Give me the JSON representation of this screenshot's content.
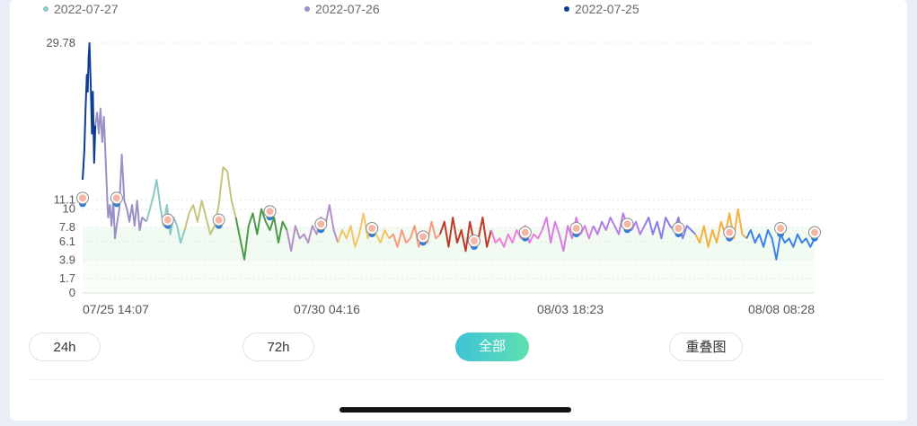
{
  "legend": [
    {
      "label": "2022-07-27",
      "color": "#8cc9c4"
    },
    {
      "label": "2022-07-26",
      "color": "#9b8fc8"
    },
    {
      "label": "2022-07-25",
      "color": "#0d3d94"
    }
  ],
  "buttons": [
    {
      "label": "24h",
      "active": false
    },
    {
      "label": "72h",
      "active": false
    },
    {
      "label": "全部",
      "active": true
    },
    {
      "label": "重叠图",
      "active": false
    }
  ],
  "chart_data": {
    "type": "line",
    "title": "",
    "xlabel": "",
    "ylabel": "",
    "ylim": [
      0,
      29.78
    ],
    "y_ticks": [
      "29.78",
      "11.1",
      "10",
      "7.8",
      "6.1",
      "3.9",
      "1.7",
      "0"
    ],
    "x_ticks": [
      "07/25 14:07",
      "07/30 04:16",
      "08/03 18:23",
      "08/08 08:28"
    ],
    "target_band": [
      3.9,
      7.8
    ],
    "grid": true,
    "series": [
      {
        "color": "#0d3d94",
        "x": [
          0.0,
          0.2,
          0.35,
          0.5,
          0.6,
          0.7,
          0.8,
          0.95,
          1.1,
          1.2,
          1.35,
          1.5
        ],
        "y": [
          13.5,
          17,
          22,
          26,
          24,
          28,
          29.78,
          25,
          19,
          24,
          15.5,
          20
        ]
      },
      {
        "color": "#9b8fc8",
        "x": [
          1.5,
          1.7,
          1.9,
          2.1,
          2.3,
          2.5,
          2.7,
          2.9,
          3.0,
          3.2,
          3.4,
          3.6,
          3.8,
          4.0
        ],
        "y": [
          20,
          21.5,
          19,
          22,
          18,
          21,
          16,
          11,
          9,
          10.5,
          8,
          11,
          6.5,
          8
        ]
      },
      {
        "color": "#9b8fc8",
        "x": [
          4.0,
          4.3,
          4.6,
          4.9,
          5.2,
          5.5,
          5.8,
          6.1,
          6.4,
          6.7,
          7.0,
          7.5
        ],
        "y": [
          8,
          10,
          16.5,
          11,
          10,
          8.5,
          10.5,
          8,
          11,
          7.5,
          9,
          8.5
        ]
      },
      {
        "color": "#8cc9c4",
        "x": [
          7.5,
          7.9,
          8.3,
          8.7,
          9.1,
          9.5,
          9.9,
          10.3,
          10.7,
          11.1,
          11.5,
          12.0
        ],
        "y": [
          8.5,
          10,
          11.5,
          13.5,
          10.5,
          8,
          10.5,
          7,
          9,
          8,
          6,
          7.5
        ]
      },
      {
        "color": "#c6c37f",
        "x": [
          12.0,
          12.5,
          13.0,
          13.5,
          14.0,
          14.5,
          15.0,
          15.5,
          16.0,
          16.5,
          17.0,
          17.5,
          18.0
        ],
        "y": [
          7.5,
          9.5,
          10.5,
          8.5,
          11,
          9,
          7,
          8,
          10.5,
          15,
          14.5,
          11,
          9
        ]
      },
      {
        "color": "#4a9a4a",
        "x": [
          18.0,
          18.5,
          19.0,
          19.5,
          20.0,
          20.5,
          21.0,
          21.5,
          22.0,
          22.5,
          23.0,
          23.5,
          24.0
        ],
        "y": [
          9,
          6.5,
          4,
          8,
          9.5,
          7,
          10,
          8.5,
          7.5,
          9,
          6,
          8.5,
          7.5
        ]
      },
      {
        "color": "#b48fc8",
        "x": [
          24.0,
          24.5,
          25.0,
          25.5,
          26.0,
          26.5,
          27.0,
          27.5,
          28.0,
          28.5,
          29.0,
          29.5,
          30.0
        ],
        "y": [
          7.5,
          5,
          8,
          6.5,
          7,
          6,
          8,
          7,
          9,
          8,
          10.5,
          7.5,
          6
        ]
      },
      {
        "color": "#f5c56a",
        "x": [
          30.0,
          30.5,
          31.0,
          31.5,
          32.0,
          32.5,
          33.0,
          33.5,
          34.0,
          34.5,
          35.0,
          35.5,
          36.0
        ],
        "y": [
          6,
          7.5,
          6.5,
          8,
          5.5,
          7,
          9.5,
          6.5,
          8,
          7,
          6,
          7.5,
          6.5
        ]
      },
      {
        "color": "#f79a80",
        "x": [
          36.0,
          36.5,
          37.0,
          37.5,
          38.0,
          38.5,
          39.0,
          39.5,
          40.0,
          40.5,
          41.0,
          41.5,
          42.0
        ],
        "y": [
          6.5,
          7,
          5.5,
          7.5,
          6,
          6.5,
          8,
          5.5,
          7,
          6,
          8.5,
          6.5,
          7
        ]
      },
      {
        "color": "#c0392b",
        "x": [
          42.0,
          42.5,
          43.0,
          43.5,
          44.0,
          44.5,
          45.0,
          45.5,
          46.0,
          46.5,
          47.0,
          47.5,
          48.0
        ],
        "y": [
          7,
          8.5,
          5.5,
          9,
          6,
          7.5,
          5,
          8.5,
          6,
          6.5,
          9,
          5.5,
          7.5
        ]
      },
      {
        "color": "#ee7fe0",
        "x": [
          48.0,
          48.5,
          49.0,
          49.5,
          50.0,
          50.5,
          51.0,
          51.5,
          52.0,
          52.5,
          53.0,
          53.5,
          54.0
        ],
        "y": [
          7.5,
          6,
          6.5,
          5.5,
          7,
          6,
          7.5,
          6.5,
          8,
          6,
          7,
          6.5,
          7.5
        ]
      },
      {
        "color": "#d97be6",
        "x": [
          54.0,
          54.5,
          55.0,
          55.5,
          56.0,
          56.5,
          57.0,
          57.5,
          58.0,
          58.5,
          59.0,
          59.5,
          60.0
        ],
        "y": [
          7.5,
          9,
          6,
          8.5,
          7,
          5,
          8,
          6.5,
          9,
          7,
          8,
          6.5,
          8
        ]
      },
      {
        "color": "#b27de8",
        "x": [
          60.0,
          60.5,
          61.0,
          61.5,
          62.0,
          62.5,
          63.0,
          63.5,
          64.0,
          64.5,
          65.0,
          65.5,
          66.0
        ],
        "y": [
          8,
          7,
          8.5,
          7.5,
          9,
          8,
          7,
          9.5,
          8,
          7.5,
          8.5,
          7,
          8
        ]
      },
      {
        "color": "#8a7ce8",
        "x": [
          66.0,
          66.5,
          67.0,
          67.5,
          68.0,
          68.5,
          69.0,
          69.5,
          70.0,
          70.5,
          71.0,
          71.5,
          72.0
        ],
        "y": [
          8,
          9,
          7,
          8.5,
          6.5,
          9,
          8,
          7.5,
          9,
          6.5,
          8,
          7.5,
          7
        ]
      },
      {
        "color": "#f5b13c",
        "x": [
          72.0,
          72.5,
          73.0,
          73.5,
          74.0,
          74.5,
          75.0,
          75.5,
          76.0,
          76.5,
          77.0,
          77.5,
          78.0
        ],
        "y": [
          7,
          6,
          8,
          5.5,
          7.5,
          6,
          8.5,
          7,
          9.5,
          6.5,
          10,
          7,
          6.5
        ]
      },
      {
        "color": "#3b82e8",
        "x": [
          78.0,
          78.5,
          79.0,
          79.5,
          80.0,
          80.5,
          81.0,
          81.5,
          82.0,
          82.5,
          83.0,
          83.5,
          84.0,
          84.5,
          85.0,
          85.5,
          86.0
        ],
        "y": [
          6.5,
          7.5,
          6,
          7,
          5.5,
          7.5,
          6.5,
          4,
          7,
          6,
          6.5,
          5.5,
          7,
          6,
          6.5,
          5.5,
          6.5
        ]
      }
    ],
    "markers_y": [
      11.1,
      11.1,
      8.5,
      8.5,
      9.5,
      8,
      7.5,
      6.5,
      6,
      7,
      7.5,
      8,
      7.5,
      7,
      7.5,
      7
    ],
    "marker_x": [
      0.0,
      4.0,
      10.0,
      16.0,
      22.0,
      28.0,
      34.0,
      40.0,
      46.0,
      52.0,
      58.0,
      64.0,
      70.0,
      76.0,
      82.0,
      86.0
    ]
  }
}
